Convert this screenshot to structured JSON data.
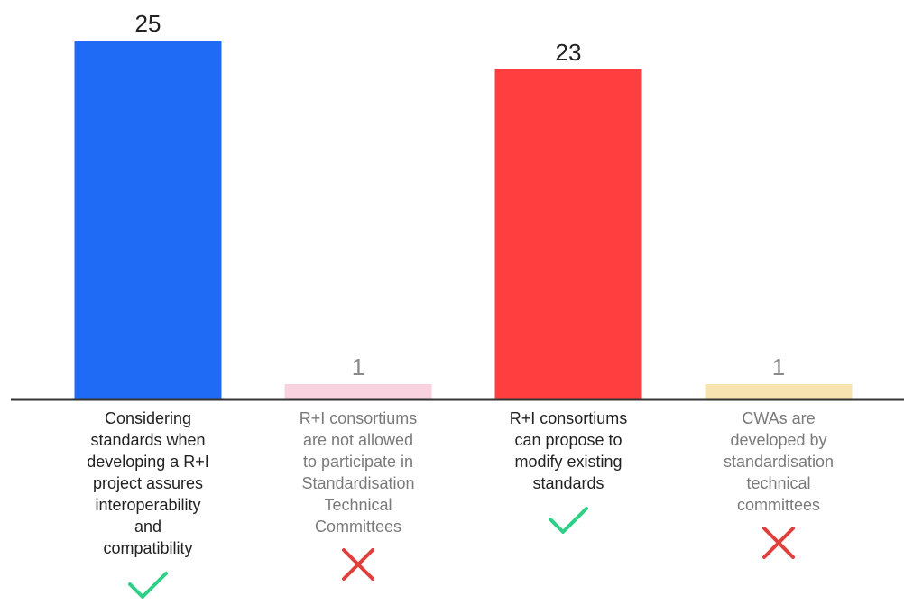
{
  "chart_data": {
    "type": "bar",
    "categories": [
      "Considering standards when developing a R+I project assures interoperability and compatibility",
      "R+I consortiums are not allowed to participate in Standardisation Technical Committees",
      "R+I consortiums can propose to modify existing standards",
      "CWAs are developed by standardisation technical committees"
    ],
    "category_lines": [
      [
        "Considering",
        "standards when",
        "developing a R+I",
        "project assures",
        "interoperability",
        "and",
        "compatibility"
      ],
      [
        "R+I consortiums",
        "are not allowed",
        "to participate in",
        "Standardisation",
        "Technical",
        "Committees"
      ],
      [
        "R+I consortiums",
        "can propose to",
        "modify existing",
        "standards"
      ],
      [
        "CWAs are",
        "developed by",
        "standardisation",
        "technical",
        "committees"
      ]
    ],
    "values": [
      25,
      1,
      23,
      1
    ],
    "data_labels": [
      "25",
      "1",
      "23",
      "1"
    ],
    "bar_colors": [
      "#1f6bf5",
      "#f8d2de",
      "#ff3f3f",
      "#f6e3b0"
    ],
    "label_colors": [
      "#222222",
      "#7a7a7a",
      "#222222",
      "#7a7a7a"
    ],
    "value_label_colors": [
      "#222222",
      "#8a8a8a",
      "#222222",
      "#8a8a8a"
    ],
    "marks": [
      "check-icon",
      "cross-icon",
      "check-icon",
      "cross-icon"
    ],
    "mark_colors": {
      "check-icon": "#2ecf87",
      "cross-icon": "#e0403c"
    },
    "ylim": [
      0,
      25
    ],
    "grid": false,
    "title": "",
    "xlabel": "",
    "ylabel": ""
  }
}
